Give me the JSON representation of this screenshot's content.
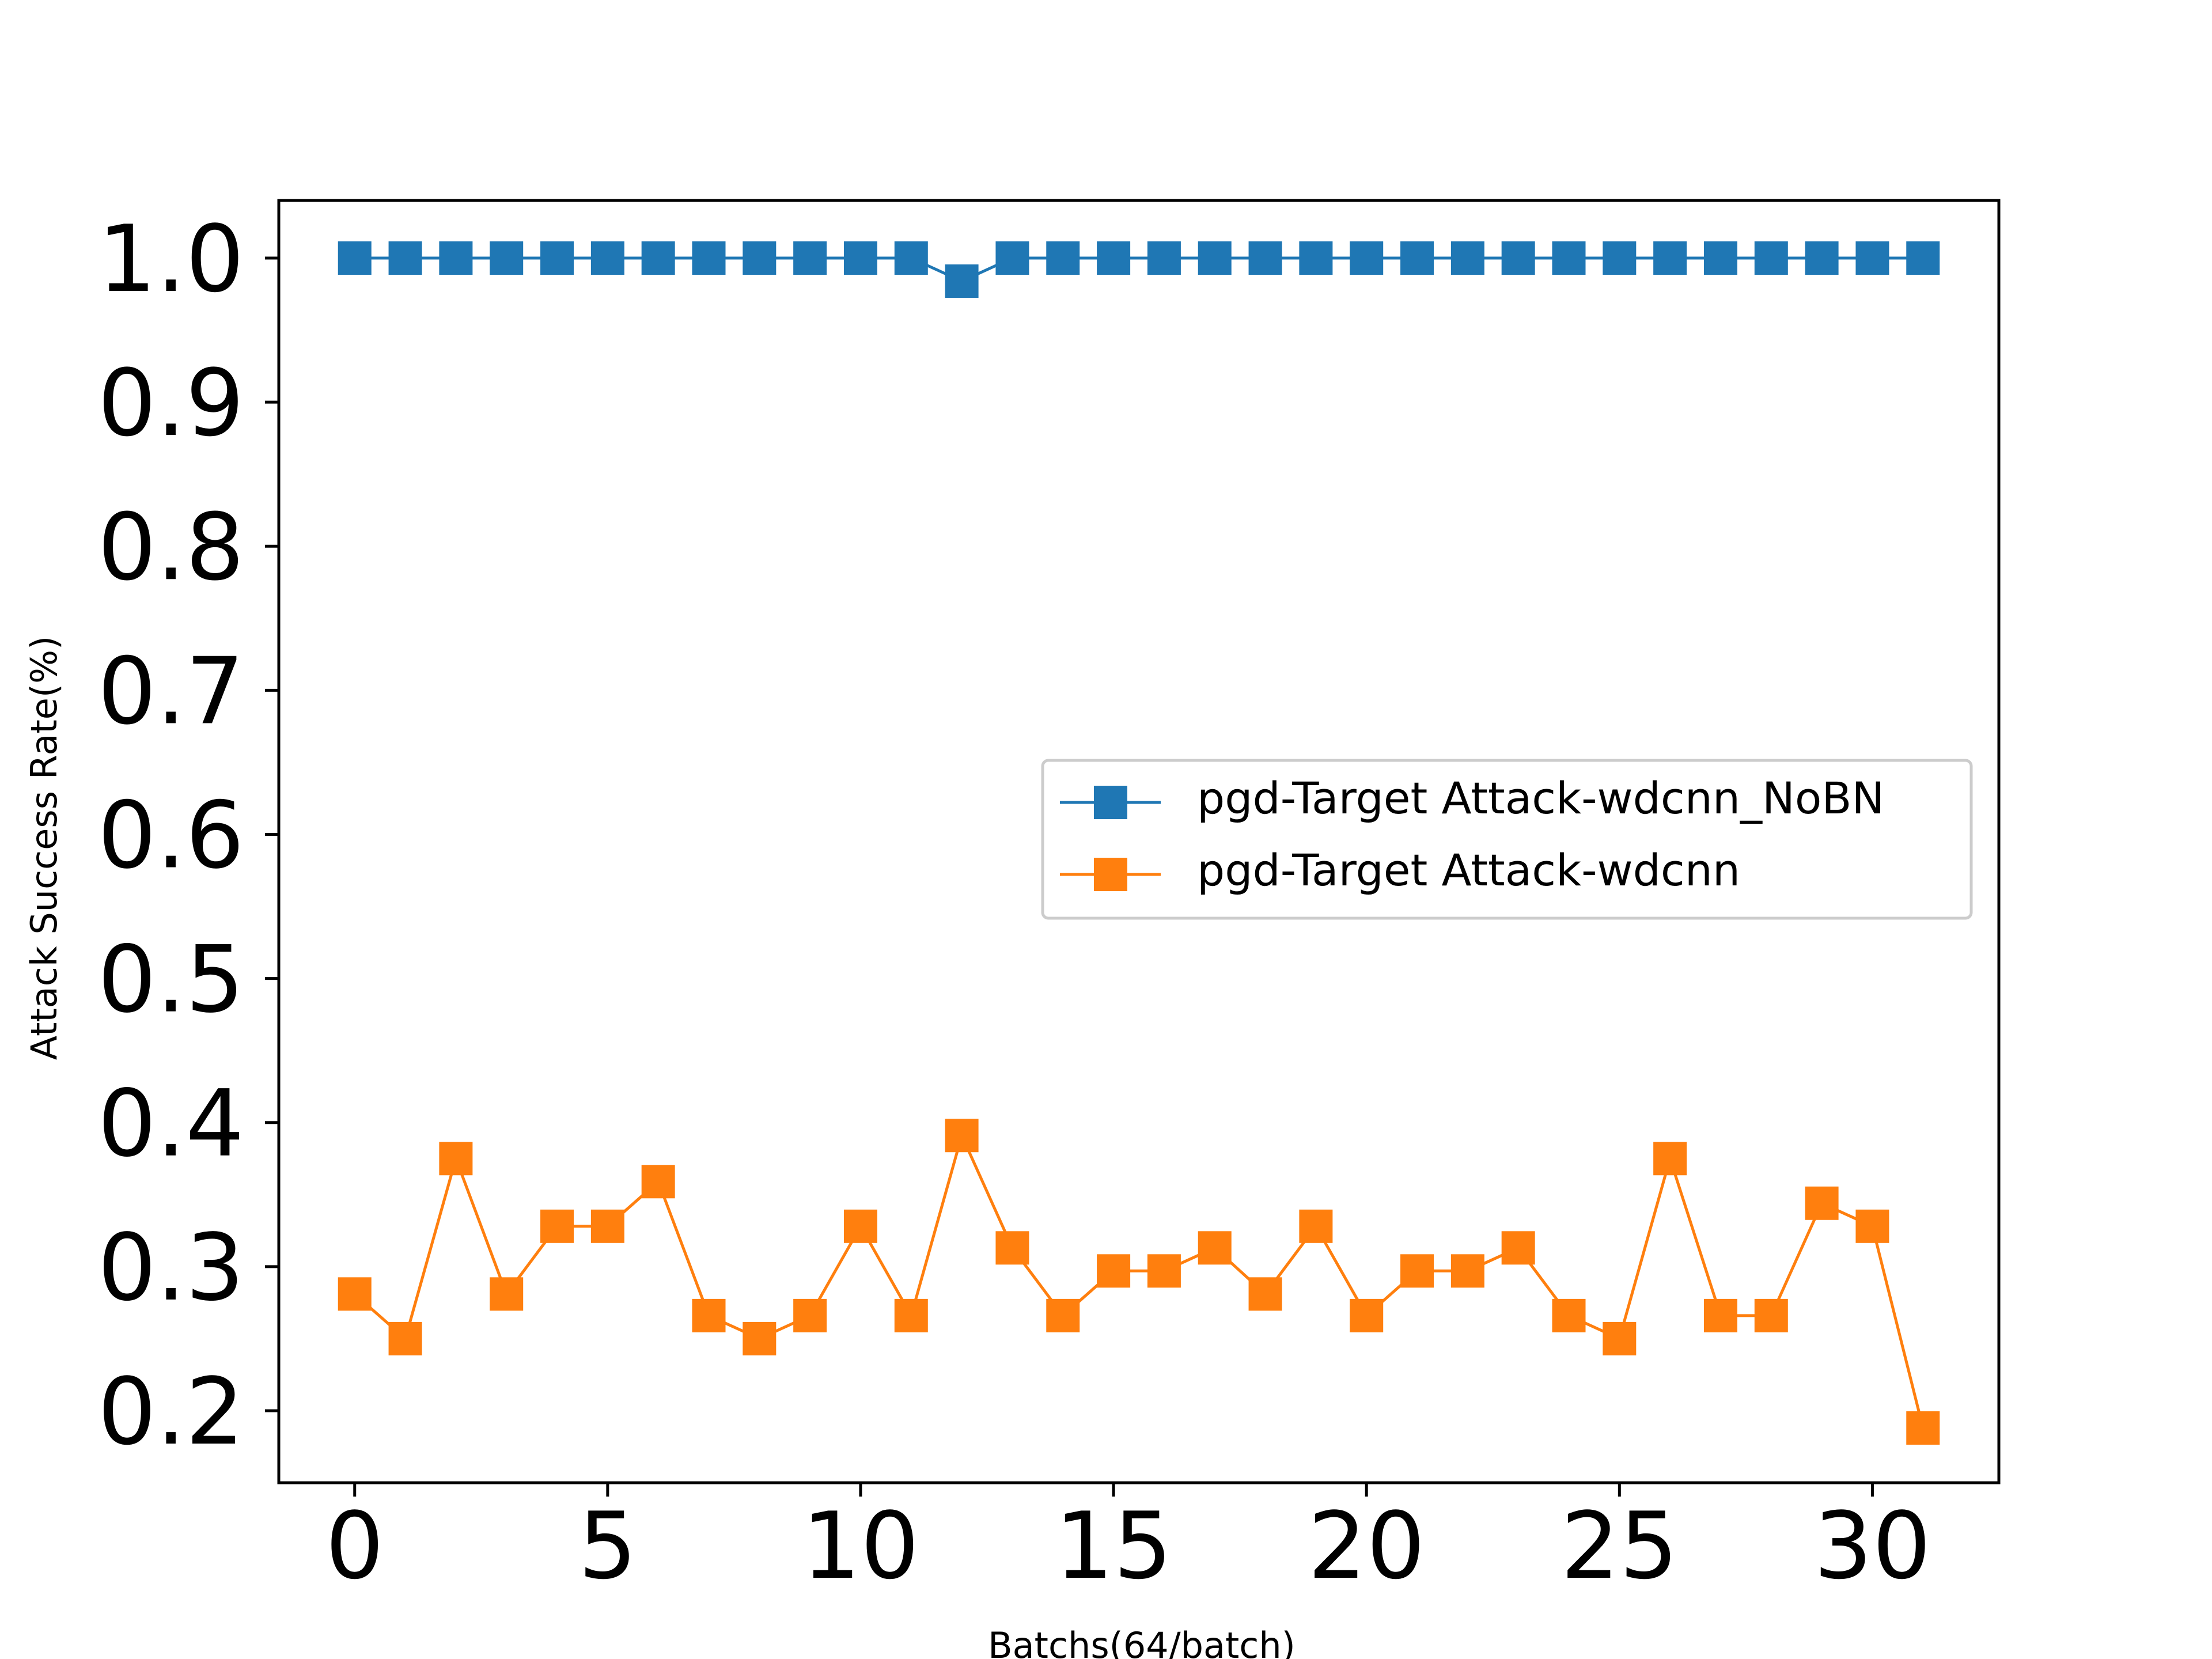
{
  "chart_data": {
    "type": "line",
    "title": "",
    "xlabel": "Batchs(64/batch)",
    "ylabel": "Attack Success Rate(%)",
    "xlim": [
      -1.5,
      32.5
    ],
    "ylim": [
      0.15,
      1.04
    ],
    "xticks": [
      0,
      5,
      10,
      15,
      20,
      25,
      30
    ],
    "yticks": [
      0.2,
      0.3,
      0.4,
      0.5,
      0.6,
      0.7,
      0.8,
      0.9,
      1.0
    ],
    "xtick_labels": [
      "0",
      "5",
      "10",
      "15",
      "20",
      "25",
      "30"
    ],
    "ytick_labels": [
      "0.2",
      "0.3",
      "0.4",
      "0.5",
      "0.6",
      "0.7",
      "0.8",
      "0.9",
      "1.0"
    ],
    "grid": false,
    "legend_position": "center-right",
    "x": [
      0,
      1,
      2,
      3,
      4,
      5,
      6,
      7,
      8,
      9,
      10,
      11,
      12,
      13,
      14,
      15,
      16,
      17,
      18,
      19,
      20,
      21,
      22,
      23,
      24,
      25,
      26,
      27,
      28,
      29,
      30,
      31
    ],
    "series": [
      {
        "name": "pgd-Target Attack-wdcnn_NoBN",
        "color": "#1f77b4",
        "marker": "square",
        "values": [
          1.0,
          1.0,
          1.0,
          1.0,
          1.0,
          1.0,
          1.0,
          1.0,
          1.0,
          1.0,
          1.0,
          1.0,
          0.984,
          1.0,
          1.0,
          1.0,
          1.0,
          1.0,
          1.0,
          1.0,
          1.0,
          1.0,
          1.0,
          1.0,
          1.0,
          1.0,
          1.0,
          1.0,
          1.0,
          1.0,
          1.0,
          1.0
        ]
      },
      {
        "name": "pgd-Target Attack-wdcnn",
        "color": "#ff7f0e",
        "marker": "square",
        "values": [
          0.281,
          0.25,
          0.375,
          0.281,
          0.328,
          0.328,
          0.359,
          0.266,
          0.25,
          0.266,
          0.328,
          0.266,
          0.391,
          0.313,
          0.266,
          0.297,
          0.297,
          0.313,
          0.281,
          0.328,
          0.266,
          0.297,
          0.297,
          0.313,
          0.266,
          0.25,
          0.375,
          0.266,
          0.266,
          0.344,
          0.328,
          0.188
        ]
      }
    ]
  }
}
